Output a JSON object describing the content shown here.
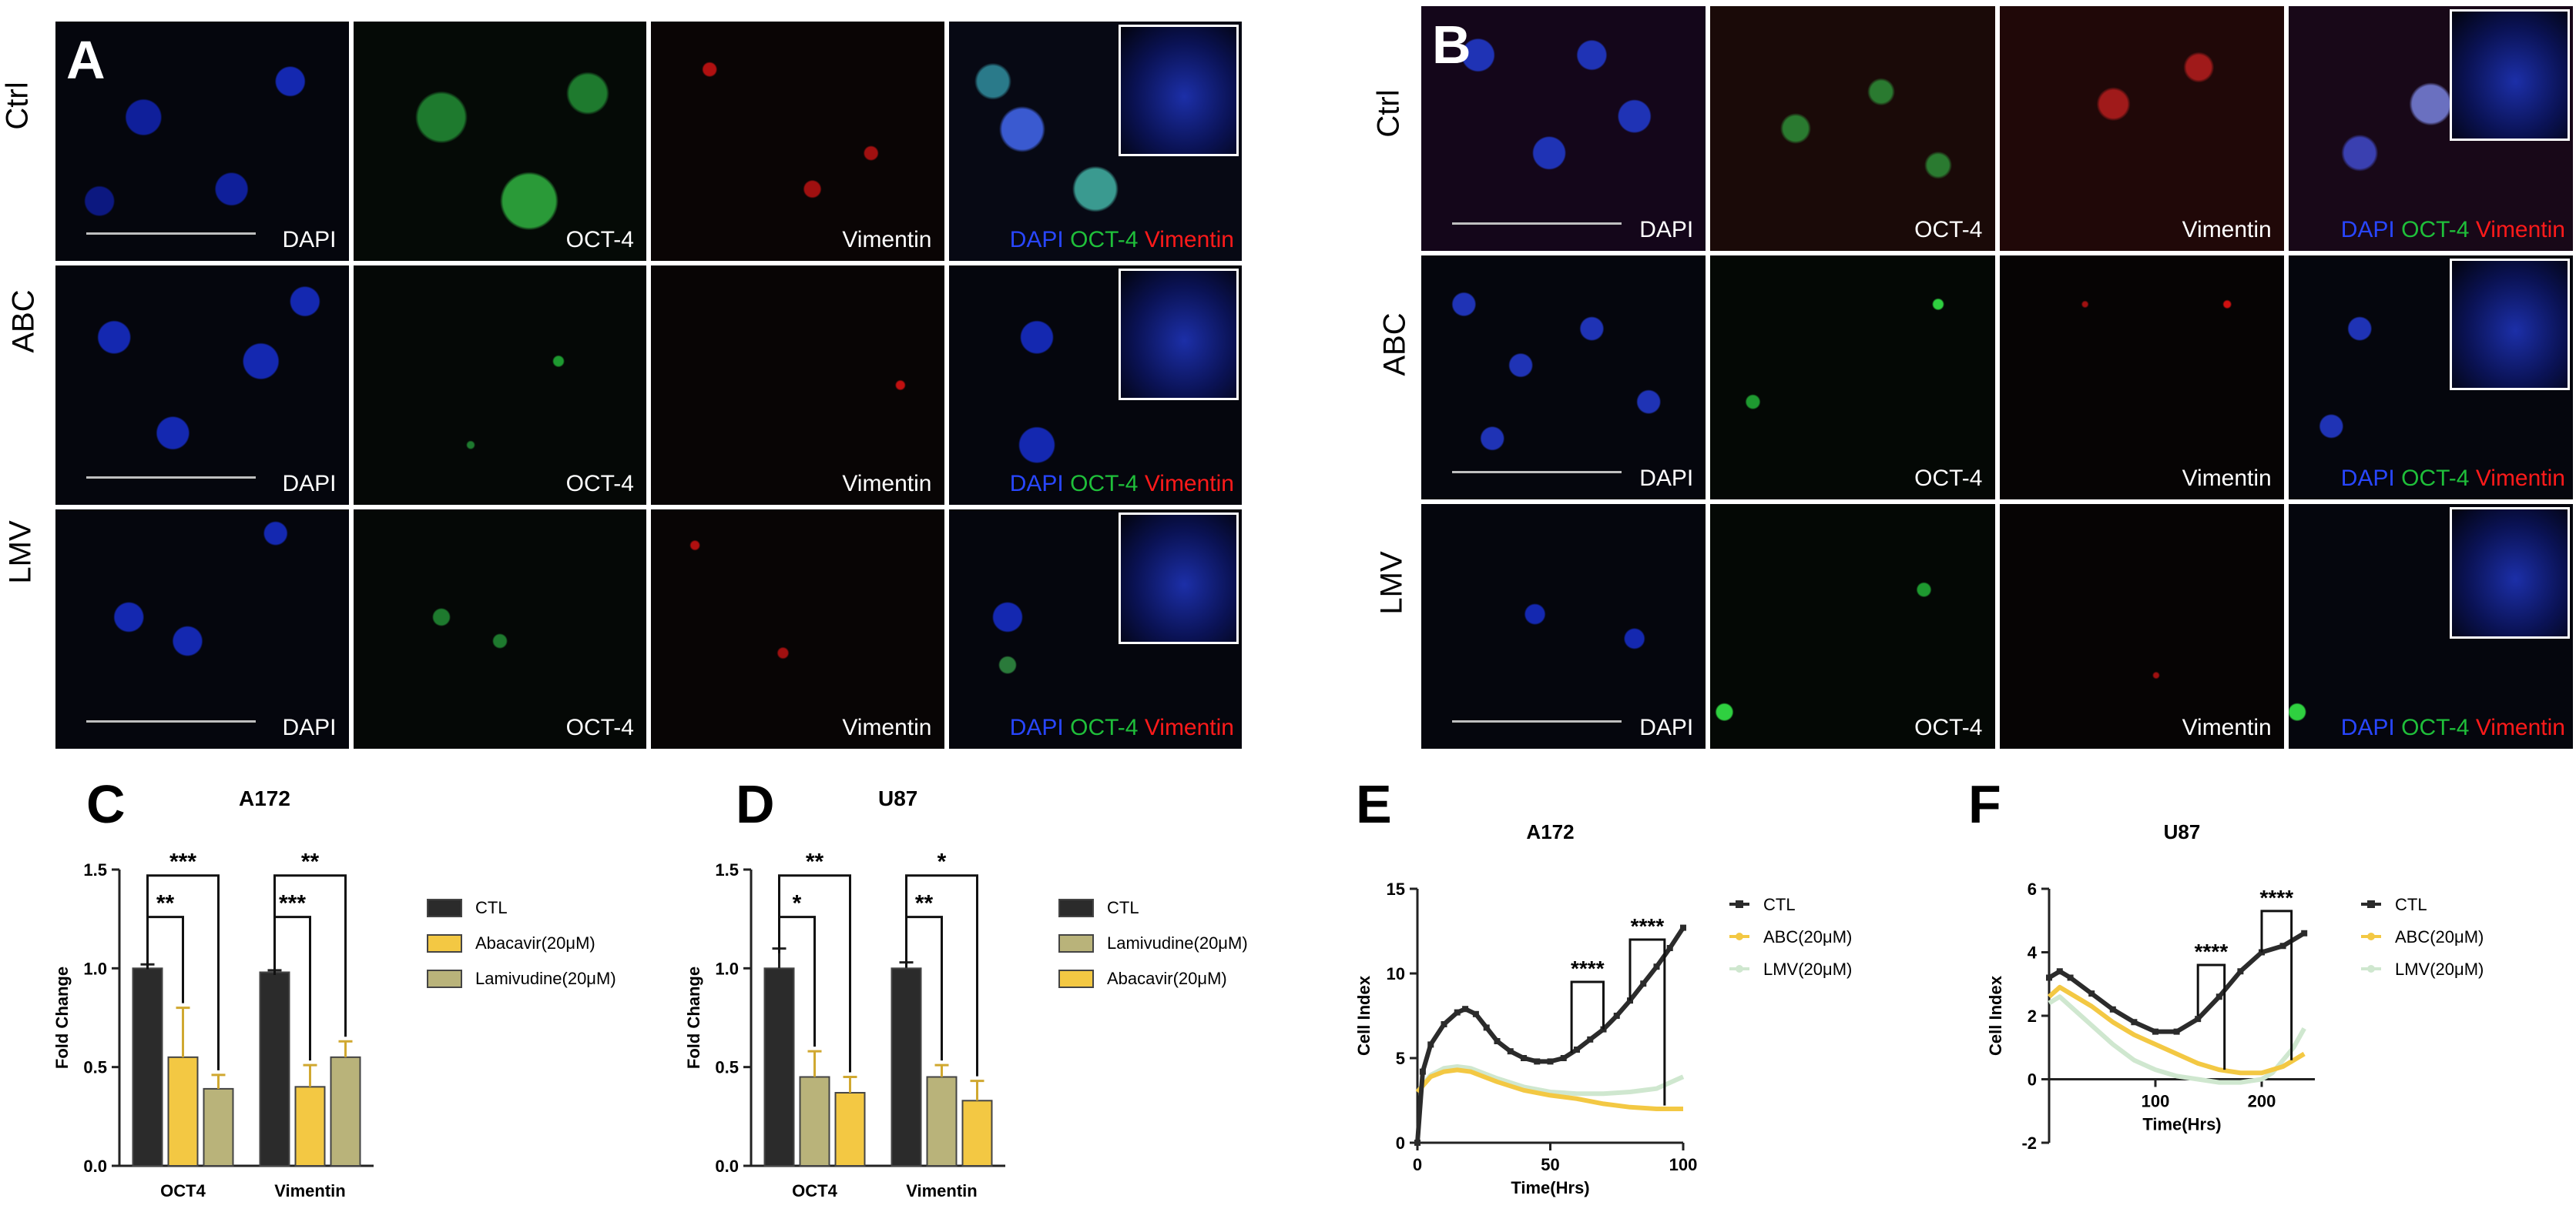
{
  "panel_A": {
    "letter": "A",
    "rows": [
      "Ctrl",
      "ABC",
      "LMV"
    ],
    "channels": [
      "DAPI",
      "OCT-4",
      "Vimentin"
    ],
    "merge": {
      "dapi": "DAPI",
      "oct": "OCT-4",
      "vim": "Vimentin"
    },
    "colors": {
      "dapi": "#2846ff",
      "oct": "#1fbf3a",
      "vim": "#ff1a1a"
    }
  },
  "panel_B": {
    "letter": "B",
    "rows": [
      "Ctrl",
      "ABC",
      "LMV"
    ],
    "channels": [
      "DAPI",
      "OCT-4",
      "Vimentin"
    ],
    "merge": {
      "dapi": "DAPI",
      "oct": "OCT-4",
      "vim": "Vimentin"
    }
  },
  "panel_C": {
    "letter": "C",
    "cell_line": "A172",
    "chart_data": {
      "type": "bar",
      "categories": [
        "OCT4",
        "Vimentin"
      ],
      "ylabel": "Fold Change",
      "ylim": [
        0.0,
        1.5
      ],
      "yticks": [
        "0.0",
        "0.5",
        "1.0",
        "1.5"
      ],
      "series": [
        {
          "name": "CTL",
          "values": [
            1.0,
            0.98
          ],
          "errors": [
            0.02,
            0.01
          ],
          "color": "#2b2b2b"
        },
        {
          "name": "Abacavir(20μM)",
          "values": [
            0.55,
            0.4
          ],
          "errors": [
            0.25,
            0.11
          ],
          "color": "#f3c843"
        },
        {
          "name": "Lamivudine(20μM)",
          "values": [
            0.39,
            0.55
          ],
          "errors": [
            0.07,
            0.08
          ],
          "color": "#b9b37a"
        }
      ],
      "significance": [
        {
          "category": 0,
          "from": 0,
          "to": 1,
          "label": "**"
        },
        {
          "category": 0,
          "from": 0,
          "to": 2,
          "label": "***"
        },
        {
          "category": 1,
          "from": 0,
          "to": 1,
          "label": "***"
        },
        {
          "category": 1,
          "from": 0,
          "to": 2,
          "label": "**"
        }
      ]
    }
  },
  "panel_D": {
    "letter": "D",
    "cell_line": "U87",
    "chart_data": {
      "type": "bar",
      "categories": [
        "OCT4",
        "Vimentin"
      ],
      "ylabel": "Fold Change",
      "ylim": [
        0.0,
        1.5
      ],
      "yticks": [
        "0.0",
        "0.5",
        "1.0",
        "1.5"
      ],
      "series": [
        {
          "name": "CTL",
          "values": [
            1.0,
            1.0
          ],
          "errors": [
            0.1,
            0.03
          ],
          "color": "#2b2b2b"
        },
        {
          "name": "Lamivudine(20μM)",
          "values": [
            0.45,
            0.45
          ],
          "errors": [
            0.13,
            0.06
          ],
          "color": "#b9b37a"
        },
        {
          "name": "Abacavir(20μM)",
          "values": [
            0.37,
            0.33
          ],
          "errors": [
            0.08,
            0.1
          ],
          "color": "#f3c843"
        }
      ],
      "significance": [
        {
          "category": 0,
          "from": 0,
          "to": 1,
          "label": "*"
        },
        {
          "category": 0,
          "from": 0,
          "to": 2,
          "label": "**"
        },
        {
          "category": 1,
          "from": 0,
          "to": 1,
          "label": "**"
        },
        {
          "category": 1,
          "from": 0,
          "to": 2,
          "label": "*"
        }
      ]
    }
  },
  "panel_E": {
    "letter": "E",
    "chart_data": {
      "type": "line",
      "title": "A172",
      "xlabel": "Time(Hrs)",
      "ylabel": "Cell Index",
      "xlim": [
        0,
        100
      ],
      "ylim": [
        0,
        15
      ],
      "xticks": [
        "0",
        "50",
        "100"
      ],
      "yticks": [
        "0",
        "5",
        "10",
        "15"
      ],
      "series": [
        {
          "name": "CTL",
          "color": "#2b2b2b",
          "x": [
            0,
            2,
            5,
            10,
            15,
            18,
            22,
            26,
            30,
            35,
            40,
            45,
            50,
            55,
            60,
            65,
            70,
            75,
            80,
            85,
            90,
            95,
            100
          ],
          "y": [
            0,
            4.2,
            5.8,
            7.0,
            7.7,
            7.9,
            7.6,
            6.8,
            6.0,
            5.4,
            5.0,
            4.8,
            4.8,
            5.0,
            5.5,
            6.1,
            6.7,
            7.5,
            8.4,
            9.4,
            10.4,
            11.5,
            12.7
          ]
        },
        {
          "name": "ABC(20μM)",
          "color": "#f3c843",
          "x": [
            0,
            5,
            10,
            15,
            20,
            30,
            40,
            50,
            60,
            70,
            80,
            90,
            100
          ],
          "y": [
            3.0,
            3.9,
            4.2,
            4.3,
            4.2,
            3.6,
            3.1,
            2.8,
            2.6,
            2.3,
            2.1,
            2.0,
            2.0
          ]
        },
        {
          "name": "LMV(20μM)",
          "color": "#cfe7cf",
          "x": [
            0,
            5,
            10,
            15,
            20,
            30,
            40,
            50,
            60,
            70,
            80,
            90,
            100
          ],
          "y": [
            3.0,
            4.0,
            4.4,
            4.5,
            4.4,
            3.8,
            3.3,
            3.0,
            2.9,
            2.9,
            3.0,
            3.2,
            3.9
          ]
        }
      ],
      "significance": [
        {
          "x1": 58,
          "x2": 70,
          "top": 9.5,
          "bottom1": 5.3,
          "bottom2": 6.7,
          "label": "****"
        },
        {
          "x1": 80,
          "x2": 93,
          "top": 12.0,
          "bottom1": 8.4,
          "bottom2": 2.2,
          "label": "****"
        }
      ]
    }
  },
  "panel_F": {
    "letter": "F",
    "chart_data": {
      "type": "line",
      "title": "U87",
      "xlabel": "Time(Hrs)",
      "ylabel": "Cell Index",
      "xlim": [
        0,
        250
      ],
      "ylim": [
        -2,
        6
      ],
      "xticks": [
        "100",
        "200"
      ],
      "yticks": [
        "-2",
        "0",
        "2",
        "4",
        "6"
      ],
      "series": [
        {
          "name": "CTL",
          "color": "#2b2b2b",
          "x": [
            0,
            10,
            20,
            40,
            60,
            80,
            100,
            120,
            140,
            160,
            180,
            200,
            220,
            240
          ],
          "y": [
            3.2,
            3.4,
            3.2,
            2.7,
            2.2,
            1.8,
            1.5,
            1.5,
            1.9,
            2.6,
            3.4,
            4.0,
            4.2,
            4.6
          ]
        },
        {
          "name": "ABC(20μM)",
          "color": "#f3c843",
          "x": [
            0,
            10,
            20,
            40,
            60,
            80,
            100,
            120,
            140,
            160,
            180,
            200,
            220,
            240
          ],
          "y": [
            2.6,
            2.9,
            2.7,
            2.3,
            1.8,
            1.4,
            1.1,
            0.8,
            0.5,
            0.3,
            0.2,
            0.2,
            0.4,
            0.8
          ]
        },
        {
          "name": "LMV(20μM)",
          "color": "#cfe7cf",
          "x": [
            0,
            10,
            20,
            40,
            60,
            80,
            100,
            120,
            140,
            160,
            180,
            200,
            210,
            220,
            230,
            240
          ],
          "y": [
            2.4,
            2.6,
            2.3,
            1.7,
            1.1,
            0.6,
            0.3,
            0.1,
            0.0,
            -0.1,
            -0.1,
            0.0,
            0.2,
            0.6,
            1.0,
            1.6
          ]
        }
      ],
      "significance": [
        {
          "x1": 140,
          "x2": 165,
          "top": 3.6,
          "bottom1": 2.0,
          "bottom2": 0.3,
          "label": "****"
        },
        {
          "x1": 200,
          "x2": 228,
          "top": 5.3,
          "bottom1": 4.0,
          "bottom2": 0.6,
          "label": "****"
        }
      ]
    }
  }
}
